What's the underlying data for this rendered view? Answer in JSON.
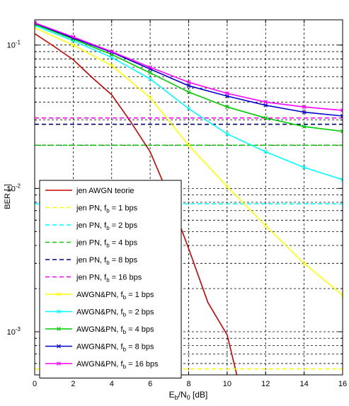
{
  "chart_data": {
    "type": "line",
    "xlabel": "E_b/N_0 [dB]",
    "ylabel": "BER [-]",
    "xlim": [
      0,
      16
    ],
    "ylim": [
      0.0005,
      0.15
    ],
    "yscale": "log",
    "grid": true,
    "legend_position": "bottom-left",
    "x_ticks": [
      0,
      2,
      4,
      6,
      8,
      10,
      12,
      14,
      16
    ],
    "x_tick_labels": [
      "0",
      "2",
      "4",
      "6",
      "8",
      "10",
      "12",
      "14",
      "16"
    ],
    "y_ticks": [
      0.001,
      0.01,
      0.1
    ],
    "y_tick_labels": [
      {
        "base": "10",
        "exp": "-3"
      },
      {
        "base": "10",
        "exp": "-2"
      },
      {
        "base": "10",
        "exp": "-1"
      }
    ],
    "series": [
      {
        "name": "jen AWGN teorie",
        "legend": {
          "main": "jen AWGN teorie",
          "sub": "",
          "tail": ""
        },
        "color": "#cc0000",
        "style": "solid",
        "marker": "none",
        "x": [
          0,
          1,
          2,
          3,
          4,
          5,
          6,
          7,
          8,
          9,
          10,
          10.5
        ],
        "y": [
          0.12,
          0.098,
          0.079,
          0.059,
          0.045,
          0.029,
          0.018,
          0.0087,
          0.0038,
          0.0016,
          0.00095,
          0.0005
        ]
      },
      {
        "name": "jen PN, fb = 1 bps",
        "legend": {
          "main": "jen PN, f",
          "sub": "b",
          "tail": " = 1 bps"
        },
        "color": "#ffff00",
        "style": "dashed",
        "marker": "none",
        "x": [
          0,
          16
        ],
        "y": [
          0.00055,
          0.00055
        ]
      },
      {
        "name": "jen PN, fb = 2 bps",
        "legend": {
          "main": "jen PN, f",
          "sub": "b",
          "tail": " = 2 bps"
        },
        "color": "#00ffff",
        "style": "dashed",
        "marker": "none",
        "x": [
          0,
          16
        ],
        "y": [
          0.0078,
          0.0078
        ]
      },
      {
        "name": "jen PN, fb = 4 bps",
        "legend": {
          "main": "jen PN, f",
          "sub": "b",
          "tail": " = 4 bps"
        },
        "color": "#00cc00",
        "style": "dashed",
        "marker": "none",
        "x": [
          0,
          16
        ],
        "y": [
          0.02,
          0.02
        ]
      },
      {
        "name": "jen PN, fb = 8 bps",
        "legend": {
          "main": "jen PN, f",
          "sub": "b",
          "tail": " = 8 bps"
        },
        "color": "#000080",
        "style": "dashed",
        "marker": "none",
        "x": [
          0,
          16
        ],
        "y": [
          0.028,
          0.028
        ]
      },
      {
        "name": "jen PN, fb = 16 bps",
        "legend": {
          "main": "jen PN, f",
          "sub": "b",
          "tail": " = 16 bps"
        },
        "color": "#ff00ff",
        "style": "dashed",
        "marker": "none",
        "x": [
          0,
          16
        ],
        "y": [
          0.031,
          0.031
        ]
      },
      {
        "name": "AWGN&PN, fb = 1 bps",
        "legend": {
          "main": "AWGN&PN, f",
          "sub": "b",
          "tail": " = 1 bps"
        },
        "color": "#ffff00",
        "style": "solid",
        "marker": "x",
        "x": [
          0,
          2,
          4,
          6,
          8,
          10,
          12,
          14,
          16
        ],
        "y": [
          0.132,
          0.1,
          0.072,
          0.043,
          0.02,
          0.0103,
          0.0055,
          0.003,
          0.0018
        ]
      },
      {
        "name": "AWGN&PN, fb = 2 bps",
        "legend": {
          "main": "AWGN&PN, f",
          "sub": "b",
          "tail": " = 2 bps"
        },
        "color": "#00ffff",
        "style": "solid",
        "marker": "x",
        "x": [
          0,
          2,
          4,
          6,
          8,
          10,
          12,
          14,
          16
        ],
        "y": [
          0.137,
          0.107,
          0.082,
          0.058,
          0.036,
          0.024,
          0.018,
          0.014,
          0.0115
        ]
      },
      {
        "name": "AWGN&PN, fb = 4 bps",
        "legend": {
          "main": "AWGN&PN, f",
          "sub": "b",
          "tail": " = 4 bps"
        },
        "color": "#00cc00",
        "style": "solid",
        "marker": "x",
        "x": [
          0,
          2,
          4,
          6,
          8,
          10,
          12,
          14,
          16
        ],
        "y": [
          0.14,
          0.11,
          0.086,
          0.064,
          0.047,
          0.037,
          0.031,
          0.027,
          0.025
        ]
      },
      {
        "name": "AWGN&PN, fb = 8 bps",
        "legend": {
          "main": "AWGN&PN, f",
          "sub": "b",
          "tail": " = 8 bps"
        },
        "color": "#0000cc",
        "style": "solid",
        "marker": "x",
        "x": [
          0,
          2,
          4,
          6,
          8,
          10,
          12,
          14,
          16
        ],
        "y": [
          0.142,
          0.112,
          0.089,
          0.068,
          0.052,
          0.044,
          0.038,
          0.034,
          0.032
        ]
      },
      {
        "name": "AWGN&PN, fb = 16 bps",
        "legend": {
          "main": "AWGN&PN, f",
          "sub": "b",
          "tail": " = 16 bps"
        },
        "color": "#ff00ff",
        "style": "solid",
        "marker": "x",
        "x": [
          0,
          2,
          4,
          6,
          8,
          10,
          12,
          14,
          16
        ],
        "y": [
          0.143,
          0.114,
          0.09,
          0.07,
          0.055,
          0.046,
          0.04,
          0.037,
          0.035
        ]
      }
    ]
  }
}
